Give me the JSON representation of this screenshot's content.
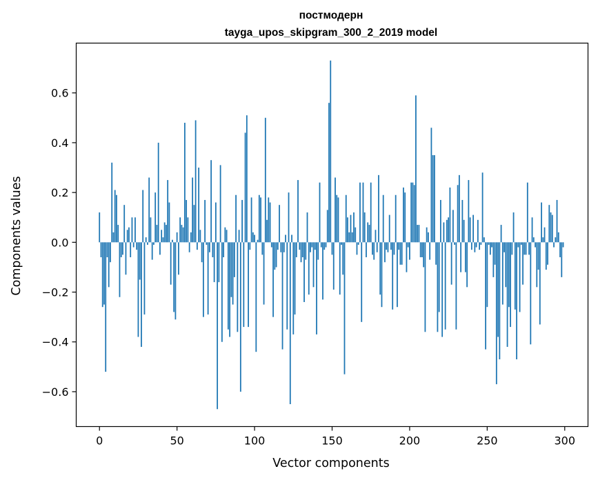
{
  "chart_data": {
    "type": "bar",
    "title_line1": "постмодерн",
    "title_line2": "tayga_upos_skipgram_300_2_2019 model",
    "xlabel": "Vector components",
    "ylabel": "Components values",
    "xlim": [
      -15,
      315
    ],
    "ylim": [
      -0.74,
      0.8
    ],
    "xticks": [
      0,
      50,
      100,
      150,
      200,
      250,
      300
    ],
    "yticks": [
      -0.6,
      -0.4,
      -0.2,
      0.0,
      0.2,
      0.4,
      0.6
    ],
    "ytick_labels": [
      "−0.6",
      "−0.4",
      "−0.2",
      "0.0",
      "0.2",
      "0.4",
      "0.6"
    ],
    "bar_color": "#1f77b4",
    "values": [
      0.12,
      -0.06,
      -0.26,
      -0.25,
      -0.52,
      -0.06,
      -0.18,
      -0.08,
      0.32,
      0.04,
      0.21,
      0.19,
      0.07,
      -0.22,
      -0.06,
      -0.05,
      0.15,
      -0.13,
      0.05,
      0.06,
      -0.06,
      0.1,
      -0.02,
      0.1,
      -0.03,
      -0.38,
      -0.15,
      -0.42,
      0.21,
      -0.29,
      0.02,
      -0.01,
      0.26,
      0.1,
      -0.07,
      -0.01,
      0.2,
      0.07,
      0.4,
      -0.05,
      0.05,
      0.02,
      0.08,
      0.07,
      0.25,
      0.16,
      -0.17,
      0.01,
      -0.28,
      -0.31,
      0.04,
      -0.13,
      0.1,
      0.07,
      0.06,
      0.48,
      0.17,
      0.1,
      -0.04,
      0.04,
      0.26,
      0.15,
      0.49,
      -0.03,
      0.3,
      0.05,
      -0.08,
      -0.3,
      0.17,
      -0.01,
      -0.29,
      -0.04,
      0.33,
      -0.06,
      -0.16,
      0.16,
      -0.67,
      -0.16,
      0.31,
      -0.4,
      -0.06,
      0.06,
      0.05,
      -0.35,
      -0.38,
      -0.22,
      -0.25,
      -0.14,
      0.19,
      -0.36,
      0.05,
      -0.6,
      0.17,
      -0.34,
      0.44,
      0.51,
      -0.34,
      -0.03,
      0.18,
      0.04,
      0.03,
      -0.44,
      0.01,
      0.19,
      0.18,
      -0.05,
      -0.25,
      0.5,
      0.09,
      0.18,
      0.16,
      -0.02,
      -0.3,
      -0.11,
      -0.1,
      -0.03,
      0.15,
      -0.04,
      -0.43,
      -0.04,
      0.03,
      -0.35,
      0.2,
      -0.65,
      0.03,
      -0.37,
      -0.29,
      -0.06,
      0.25,
      -0.03,
      -0.08,
      -0.06,
      -0.24,
      -0.07,
      0.12,
      -0.21,
      -0.04,
      -0.02,
      -0.18,
      -0.03,
      -0.37,
      -0.07,
      0.24,
      -0.02,
      -0.23,
      -0.03,
      -0.02,
      0.13,
      0.56,
      0.73,
      -0.05,
      -0.19,
      0.26,
      0.19,
      0.18,
      -0.21,
      -0.01,
      -0.13,
      -0.53,
      0.19,
      0.1,
      0.04,
      0.11,
      0.04,
      0.12,
      0.06,
      -0.05,
      -0.01,
      0.24,
      -0.32,
      0.24,
      0.12,
      -0.06,
      0.08,
      0.07,
      0.24,
      -0.05,
      -0.07,
      0.05,
      -0.04,
      0.27,
      -0.21,
      -0.26,
      0.19,
      -0.08,
      -0.03,
      -0.04,
      0.11,
      -0.03,
      -0.27,
      -0.05,
      0.19,
      -0.26,
      -0.03,
      -0.09,
      -0.09,
      0.22,
      0.2,
      -0.12,
      -0.02,
      -0.07,
      0.24,
      0.24,
      0.23,
      0.59,
      0.07,
      0.07,
      -0.06,
      -0.06,
      -0.1,
      -0.36,
      0.06,
      0.04,
      -0.07,
      0.46,
      0.35,
      0.35,
      -0.09,
      -0.36,
      -0.28,
      0.17,
      -0.38,
      0.08,
      -0.35,
      0.09,
      0.1,
      0.22,
      -0.17,
      0.13,
      -0.01,
      -0.35,
      0.23,
      0.27,
      -0.12,
      0.17,
      0.09,
      -0.12,
      -0.18,
      0.25,
      0.1,
      -0.03,
      0.11,
      -0.04,
      -0.02,
      0.09,
      -0.03,
      -0.01,
      0.28,
      0.02,
      -0.43,
      -0.26,
      -0.01,
      -0.05,
      -0.02,
      -0.14,
      -0.09,
      -0.57,
      -0.38,
      -0.47,
      0.07,
      -0.25,
      -0.04,
      -0.18,
      -0.42,
      -0.26,
      -0.34,
      -0.05,
      0.12,
      -0.27,
      -0.47,
      -0.02,
      -0.28,
      -0.01,
      -0.17,
      -0.05,
      -0.05,
      0.24,
      -0.05,
      -0.41,
      0.1,
      0.02,
      -0.02,
      -0.18,
      -0.11,
      -0.33,
      0.16,
      0.02,
      0.06,
      -0.11,
      -0.09,
      0.15,
      0.12,
      0.11,
      -0.02,
      0.02,
      0.17,
      0.04,
      -0.06,
      -0.14,
      -0.02
    ]
  }
}
